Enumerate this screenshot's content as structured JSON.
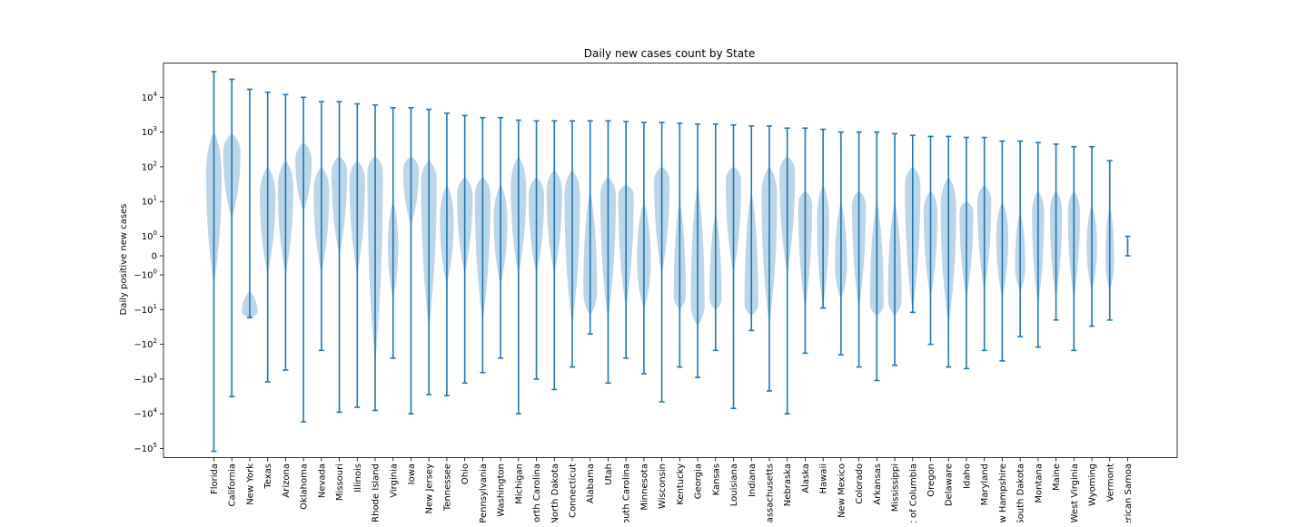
{
  "chart_data": {
    "type": "violin",
    "title": "Daily new cases count by State",
    "xlabel": "",
    "ylabel": "Daily positive new cases",
    "y_scale": "symlog",
    "y_linthresh": 1,
    "ylim": [
      -130000,
      60000
    ],
    "y_ticks": [
      {
        "value": 10000,
        "base": "10",
        "exp": "4"
      },
      {
        "value": 1000,
        "base": "10",
        "exp": "3"
      },
      {
        "value": 100,
        "base": "10",
        "exp": "2"
      },
      {
        "value": 10,
        "base": "10",
        "exp": "1"
      },
      {
        "value": 1,
        "base": "10",
        "exp": "0"
      },
      {
        "value": 0,
        "label": "0"
      },
      {
        "value": -1,
        "base": "−10",
        "exp": "0"
      },
      {
        "value": -10,
        "base": "−10",
        "exp": "1"
      },
      {
        "value": -100,
        "base": "−10",
        "exp": "2"
      },
      {
        "value": -1000,
        "base": "−10",
        "exp": "3"
      },
      {
        "value": -10000,
        "base": "−10",
        "exp": "4"
      },
      {
        "value": -100000,
        "base": "−10",
        "exp": "5"
      }
    ],
    "grid": false,
    "legend": "none",
    "colors": {
      "body": "#1f77b4",
      "body_alpha": 0.3,
      "line": "#1f77b4"
    },
    "categories": [
      "Florida",
      "California",
      "New York",
      "Texas",
      "Arizona",
      "Oklahoma",
      "Nevada",
      "Missouri",
      "Illinois",
      "Rhode Island",
      "Virginia",
      "Iowa",
      "New Jersey",
      "Tennessee",
      "Ohio",
      "Pennsylvania",
      "Washington",
      "Michigan",
      "North Carolina",
      "North Dakota",
      "Connecticut",
      "Alabama",
      "Utah",
      "South Carolina",
      "Minnesota",
      "Wisconsin",
      "Kentucky",
      "Georgia",
      "Kansas",
      "Louisiana",
      "Indiana",
      "Massachusetts",
      "Nebraska",
      "Alaska",
      "Hawaii",
      "New Mexico",
      "Colorado",
      "Arkansas",
      "Mississippi",
      "District of Columbia",
      "Oregon",
      "Delaware",
      "Idaho",
      "Maryland",
      "New Hampshire",
      "South Dakota",
      "Montana",
      "Maine",
      "West Virginia",
      "Wyoming",
      "Vermont",
      "American Samoa"
    ],
    "violins": [
      {
        "max": 55000,
        "min": -120000,
        "center": 60,
        "top": 1000,
        "bottom": -2,
        "width": 0.9
      },
      {
        "max": 33000,
        "min": -3200,
        "center": 250,
        "top": 900,
        "bottom": 3,
        "width": 1.0
      },
      {
        "max": 17000,
        "min": -17,
        "center": -12,
        "top": -3,
        "bottom": -17,
        "width": 0.9
      },
      {
        "max": 14000,
        "min": -1200,
        "center": 15,
        "top": 100,
        "bottom": -1,
        "width": 0.9
      },
      {
        "max": 12000,
        "min": -550,
        "center": 25,
        "top": 150,
        "bottom": -1,
        "width": 0.9
      },
      {
        "max": 10000,
        "min": -17000,
        "center": 150,
        "top": 500,
        "bottom": 5,
        "width": 0.95
      },
      {
        "max": 7500,
        "min": -150,
        "center": 20,
        "top": 100,
        "bottom": -1,
        "width": 0.9
      },
      {
        "max": 7500,
        "min": -9000,
        "center": 70,
        "top": 200,
        "bottom": 0,
        "width": 0.9
      },
      {
        "max": 6500,
        "min": -6500,
        "center": 40,
        "top": 150,
        "bottom": -1,
        "width": 0.9
      },
      {
        "max": 6000,
        "min": -8000,
        "center": 70,
        "top": 200,
        "bottom": -400,
        "width": 0.9
      },
      {
        "max": 5000,
        "min": -250,
        "center": 0.5,
        "top": 10,
        "bottom": -5,
        "width": 0.6
      },
      {
        "max": 5000,
        "min": -10000,
        "center": 80,
        "top": 200,
        "bottom": 2,
        "width": 0.9
      },
      {
        "max": 4500,
        "min": -2800,
        "center": 40,
        "top": 150,
        "bottom": -40,
        "width": 0.9
      },
      {
        "max": 3500,
        "min": -3000,
        "center": 3,
        "top": 30,
        "bottom": -2,
        "width": 0.8
      },
      {
        "max": 3000,
        "min": -1300,
        "center": 15,
        "top": 50,
        "bottom": -1,
        "width": 0.9
      },
      {
        "max": 2600,
        "min": -650,
        "center": 15,
        "top": 50,
        "bottom": -25,
        "width": 0.9
      },
      {
        "max": 2600,
        "min": -250,
        "center": 3,
        "top": 30,
        "bottom": -2,
        "width": 0.8
      },
      {
        "max": 2200,
        "min": -10000,
        "center": 25,
        "top": 200,
        "bottom": -1,
        "width": 0.9
      },
      {
        "max": 2100,
        "min": -1000,
        "center": 15,
        "top": 50,
        "bottom": -1,
        "width": 0.9
      },
      {
        "max": 2100,
        "min": -2000,
        "center": 20,
        "top": 80,
        "bottom": -1,
        "width": 0.9
      },
      {
        "max": 2100,
        "min": -450,
        "center": 15,
        "top": 80,
        "bottom": -30,
        "width": 0.9
      },
      {
        "max": 2100,
        "min": -50,
        "center": -3,
        "top": 20,
        "bottom": -15,
        "width": 0.8
      },
      {
        "max": 2100,
        "min": -1300,
        "center": 15,
        "top": 50,
        "bottom": -20,
        "width": 0.9
      },
      {
        "max": 2000,
        "min": -250,
        "center": 15,
        "top": 30,
        "bottom": -10,
        "width": 0.9
      },
      {
        "max": 1900,
        "min": -700,
        "center": -0.3,
        "top": 10,
        "bottom": -10,
        "width": 0.8
      },
      {
        "max": 1900,
        "min": -4500,
        "center": 40,
        "top": 100,
        "bottom": -1,
        "width": 0.9
      },
      {
        "max": 1800,
        "min": -450,
        "center": -4,
        "top": 10,
        "bottom": -10,
        "width": 0.7
      },
      {
        "max": 1700,
        "min": -900,
        "center": -7,
        "top": 30,
        "bottom": -30,
        "width": 0.8
      },
      {
        "max": 1700,
        "min": -150,
        "center": -5,
        "top": 5,
        "bottom": -10,
        "width": 0.7
      },
      {
        "max": 1600,
        "min": -7000,
        "center": 40,
        "top": 100,
        "bottom": -1,
        "width": 0.9
      },
      {
        "max": 1500,
        "min": -40,
        "center": -7,
        "top": 20,
        "bottom": -15,
        "width": 0.8
      },
      {
        "max": 1500,
        "min": -2200,
        "center": 15,
        "top": 100,
        "bottom": -30,
        "width": 0.9
      },
      {
        "max": 1300,
        "min": -10000,
        "center": 70,
        "top": 200,
        "bottom": -1,
        "width": 0.9
      },
      {
        "max": 1300,
        "min": -180,
        "center": 8,
        "top": 20,
        "bottom": -10,
        "width": 0.8
      },
      {
        "max": 1200,
        "min": -9,
        "center": 3,
        "top": 30,
        "bottom": -9,
        "width": 0.7
      },
      {
        "max": 1000,
        "min": -200,
        "center": -0.5,
        "top": 10,
        "bottom": -5,
        "width": 0.7
      },
      {
        "max": 1000,
        "min": -450,
        "center": 8,
        "top": 20,
        "bottom": -10,
        "width": 0.8
      },
      {
        "max": 1000,
        "min": -1100,
        "center": -7,
        "top": 10,
        "bottom": -15,
        "width": 0.8
      },
      {
        "max": 900,
        "min": -400,
        "center": -5,
        "top": 10,
        "bottom": -15,
        "width": 0.8
      },
      {
        "max": 800,
        "min": -12,
        "center": 30,
        "top": 100,
        "bottom": -12,
        "width": 0.9
      },
      {
        "max": 750,
        "min": -100,
        "center": 5,
        "top": 20,
        "bottom": -5,
        "width": 0.8
      },
      {
        "max": 750,
        "min": -450,
        "center": 7,
        "top": 50,
        "bottom": -30,
        "width": 0.9
      },
      {
        "max": 700,
        "min": -500,
        "center": 5,
        "top": 10,
        "bottom": -5,
        "width": 0.8
      },
      {
        "max": 700,
        "min": -150,
        "center": 10,
        "top": 30,
        "bottom": -3,
        "width": 0.8
      },
      {
        "max": 550,
        "min": -300,
        "center": 1,
        "top": 10,
        "bottom": -5,
        "width": 0.7
      },
      {
        "max": 550,
        "min": -60,
        "center": -0.5,
        "top": 5,
        "bottom": -3,
        "width": 0.6
      },
      {
        "max": 500,
        "min": -120,
        "center": 5,
        "top": 20,
        "bottom": -8,
        "width": 0.7
      },
      {
        "max": 450,
        "min": -20,
        "center": 5,
        "top": 20,
        "bottom": -5,
        "width": 0.7
      },
      {
        "max": 380,
        "min": -150,
        "center": 5,
        "top": 20,
        "bottom": -5,
        "width": 0.7
      },
      {
        "max": 380,
        "min": -30,
        "center": 0.5,
        "top": 8,
        "bottom": -3,
        "width": 0.6
      },
      {
        "max": 150,
        "min": -20,
        "center": -0.2,
        "top": 8,
        "bottom": -3,
        "width": 0.5
      },
      {
        "max": 1,
        "min": 0,
        "center": 0.5,
        "top": 1,
        "bottom": 0,
        "width": 0.1
      }
    ]
  }
}
